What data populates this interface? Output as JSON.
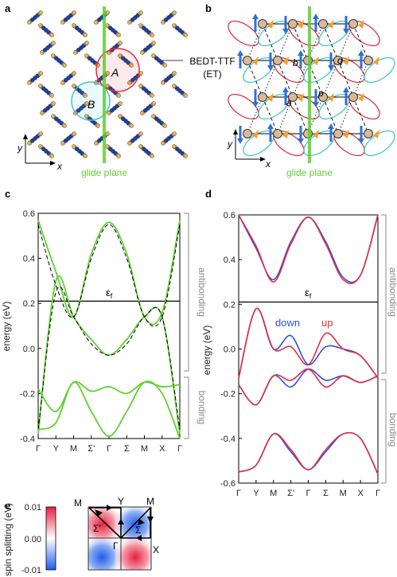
{
  "panels": {
    "a": {
      "label": "a",
      "glide_label": "glide plane",
      "dimer_a": "A",
      "dimer_b": "B",
      "axis_x": "x",
      "axis_y": "y",
      "molecule_label": "BEDT-TTF",
      "molecule_abbrev": "(ET)"
    },
    "b": {
      "label": "b",
      "glide_label": "glide plane",
      "bond_labels": [
        "b",
        "q",
        "a",
        "p"
      ],
      "axis_x": "x",
      "axis_y": "y"
    },
    "c": {
      "label": "c",
      "ylabel": "energy (eV)",
      "yticks": [
        "0.6",
        "0.4",
        "0.2",
        "0.0",
        "-0.2",
        "-0.4"
      ],
      "xticks": [
        "Γ",
        "Y",
        "M",
        "Σ'",
        "Γ",
        "Σ",
        "M",
        "X",
        "Γ"
      ],
      "fermi_label": "ε",
      "fermi_sub": "f",
      "antibonding": "antibonding",
      "bonding": "bonding"
    },
    "d": {
      "label": "d",
      "ylabel": "energy (eV)",
      "yticks": [
        "0.6",
        "0.4",
        "0.2",
        "0.0",
        "-0.2",
        "-0.4",
        "-0.6"
      ],
      "xticks": [
        "Γ",
        "Y",
        "M",
        "Σ'",
        "Γ",
        "Σ",
        "M",
        "X",
        "Γ"
      ],
      "fermi_label": "ε",
      "fermi_sub": "f",
      "down": "down",
      "up": "up",
      "antibonding": "antibonding",
      "bonding": "bonding"
    },
    "e": {
      "label": "e",
      "ylabel": "spin splitting (eV)",
      "colorbar_ticks": [
        "0.01",
        "0.00",
        "-0.01"
      ],
      "points": {
        "M1": "M",
        "Y": "Y",
        "M2": "M",
        "X": "X",
        "Gamma": "Γ",
        "Sigma_prime": "Σ'",
        "Sigma": "Σ"
      }
    }
  },
  "colors": {
    "green": "#5ed12f",
    "red": "#e03040",
    "blue": "#3050e0",
    "cyan": "#3cc6d6",
    "gray": "#8a8a8a"
  },
  "chart_data": [
    {
      "type": "line",
      "panel": "c",
      "ylabel": "energy (eV)",
      "ylim": [
        -0.4,
        0.6
      ],
      "xlim": [
        0,
        8
      ],
      "x_tick_labels": [
        "Γ",
        "Y",
        "M",
        "Σ'",
        "Γ",
        "Σ",
        "M",
        "X",
        "Γ"
      ],
      "fermi_level": 0.21,
      "series": [
        {
          "style": "solid-green",
          "x": [
            0,
            1,
            2,
            3,
            4,
            5,
            6,
            7,
            8
          ],
          "y": [
            0.57,
            0.34,
            0.14,
            0.42,
            0.56,
            0.42,
            0.14,
            0.16,
            0.57
          ]
        },
        {
          "style": "solid-green",
          "x": [
            0,
            1,
            2,
            3,
            4,
            5,
            6,
            7,
            8
          ],
          "y": [
            -0.38,
            0.3,
            0.14,
            0.04,
            -0.03,
            0.04,
            0.14,
            0.14,
            -0.38
          ]
        },
        {
          "style": "dashed-black",
          "x": [
            0,
            1,
            2,
            3,
            4,
            5,
            6,
            7,
            8
          ],
          "y": [
            0.55,
            0.28,
            0.14,
            0.4,
            0.55,
            0.4,
            0.14,
            0.14,
            0.55
          ]
        },
        {
          "style": "dashed-black",
          "x": [
            0,
            1,
            2,
            3,
            4,
            5,
            6,
            7,
            8
          ],
          "y": [
            -0.36,
            0.25,
            0.14,
            0.02,
            -0.03,
            0.02,
            0.14,
            0.14,
            -0.36
          ]
        },
        {
          "style": "solid-green",
          "x": [
            0,
            1,
            2,
            3,
            4,
            5,
            6,
            7,
            8
          ],
          "y": [
            -0.18,
            -0.28,
            -0.15,
            -0.19,
            -0.17,
            -0.2,
            -0.15,
            -0.17,
            -0.16
          ]
        },
        {
          "style": "solid-green",
          "x": [
            0,
            1,
            2,
            3,
            4,
            5,
            6,
            7,
            8
          ],
          "y": [
            -0.36,
            -0.33,
            -0.15,
            -0.28,
            -0.39,
            -0.28,
            -0.15,
            -0.2,
            -0.4
          ]
        }
      ]
    },
    {
      "type": "line",
      "panel": "d",
      "ylabel": "energy (eV)",
      "ylim": [
        -0.6,
        0.6
      ],
      "xlim": [
        0,
        8
      ],
      "x_tick_labels": [
        "Γ",
        "Y",
        "M",
        "Σ'",
        "Γ",
        "Σ",
        "M",
        "X",
        "Γ"
      ],
      "fermi_level": 0.21,
      "series": [
        {
          "name": "down",
          "x": [
            0,
            1,
            2,
            3,
            4,
            5,
            6,
            7,
            8
          ],
          "y": [
            0.6,
            0.45,
            0.31,
            0.48,
            0.59,
            0.48,
            0.32,
            0.33,
            0.6
          ]
        },
        {
          "name": "up",
          "x": [
            0,
            1,
            2,
            3,
            4,
            5,
            6,
            7,
            8
          ],
          "y": [
            0.6,
            0.46,
            0.3,
            0.47,
            0.59,
            0.47,
            0.31,
            0.33,
            0.6
          ]
        },
        {
          "name": "down",
          "x": [
            0,
            1,
            2,
            3,
            4,
            5,
            6,
            7,
            8
          ],
          "y": [
            -0.13,
            0.18,
            0.0,
            0.06,
            -0.07,
            0.01,
            0.0,
            -0.03,
            -0.13
          ]
        },
        {
          "name": "up",
          "x": [
            0,
            1,
            2,
            3,
            4,
            5,
            6,
            7,
            8
          ],
          "y": [
            -0.13,
            0.18,
            0.0,
            0.01,
            -0.07,
            0.07,
            0.0,
            -0.03,
            -0.13
          ]
        },
        {
          "name": "down",
          "x": [
            0,
            1,
            2,
            3,
            4,
            5,
            6,
            7,
            8
          ],
          "y": [
            -0.16,
            -0.25,
            -0.12,
            -0.17,
            -0.09,
            -0.14,
            -0.12,
            -0.15,
            -0.12
          ]
        },
        {
          "name": "up",
          "x": [
            0,
            1,
            2,
            3,
            4,
            5,
            6,
            7,
            8
          ],
          "y": [
            -0.16,
            -0.25,
            -0.12,
            -0.14,
            -0.09,
            -0.17,
            -0.12,
            -0.15,
            -0.12
          ]
        },
        {
          "name": "down",
          "x": [
            0,
            1,
            2,
            3,
            4,
            5,
            6,
            7,
            8
          ],
          "y": [
            -0.55,
            -0.52,
            -0.38,
            -0.46,
            -0.54,
            -0.46,
            -0.38,
            -0.4,
            -0.56
          ]
        },
        {
          "name": "up",
          "x": [
            0,
            1,
            2,
            3,
            4,
            5,
            6,
            7,
            8
          ],
          "y": [
            -0.55,
            -0.52,
            -0.38,
            -0.45,
            -0.54,
            -0.45,
            -0.38,
            -0.4,
            -0.56
          ]
        }
      ]
    },
    {
      "type": "heatmap",
      "panel": "e",
      "ylabel": "spin splitting (eV)",
      "zlim": [
        -0.01,
        0.01
      ],
      "colorbar_ticks": [
        0.01,
        0.0,
        -0.01
      ],
      "quadrant_sign": {
        "top-left": 1,
        "top-right": -1,
        "bottom-left": -1,
        "bottom-right": 1
      }
    }
  ]
}
